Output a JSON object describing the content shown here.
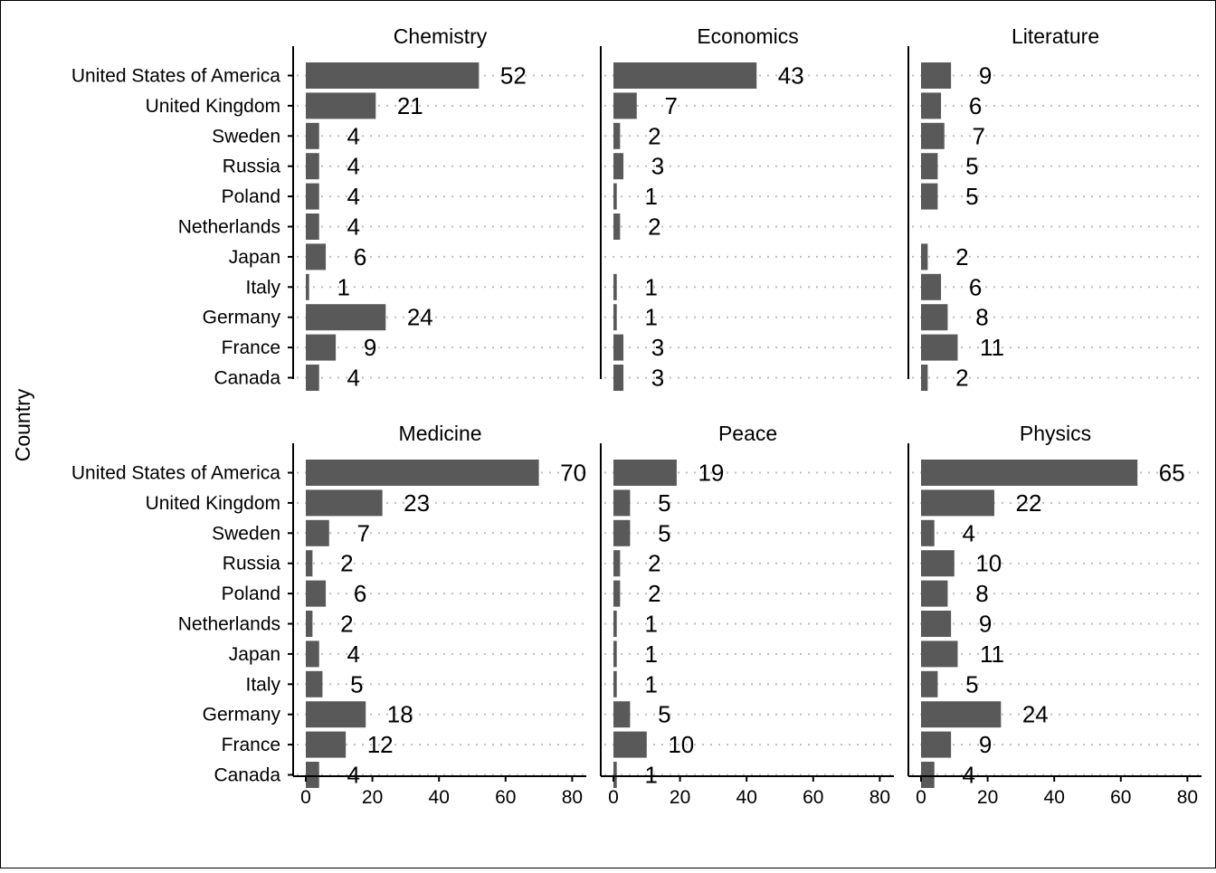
{
  "chart_data": {
    "type": "bar",
    "orientation": "horizontal",
    "facet_layout": "2 rows x 3 columns",
    "ylabel": "Country",
    "xlabel": "",
    "xlim": [
      0,
      84
    ],
    "x_ticks": [
      0,
      20,
      40,
      60,
      80
    ],
    "grid": "dotted horizontal guides",
    "bar_color": "#595959",
    "categories": [
      "United States of America",
      "United Kingdom",
      "Sweden",
      "Russia",
      "Poland",
      "Netherlands",
      "Japan",
      "Italy",
      "Germany",
      "France",
      "Canada"
    ],
    "facets": [
      {
        "title": "Chemistry",
        "values": [
          52,
          21,
          4,
          4,
          4,
          4,
          6,
          1,
          24,
          9,
          4
        ]
      },
      {
        "title": "Economics",
        "values": [
          43,
          7,
          2,
          3,
          1,
          2,
          null,
          1,
          1,
          3,
          3
        ]
      },
      {
        "title": "Literature",
        "values": [
          9,
          6,
          7,
          5,
          5,
          null,
          2,
          6,
          8,
          11,
          2
        ]
      },
      {
        "title": "Medicine",
        "values": [
          70,
          23,
          7,
          2,
          6,
          2,
          4,
          5,
          18,
          12,
          4
        ]
      },
      {
        "title": "Peace",
        "values": [
          19,
          5,
          5,
          2,
          2,
          1,
          1,
          1,
          5,
          10,
          1
        ]
      },
      {
        "title": "Physics",
        "values": [
          65,
          22,
          4,
          10,
          8,
          9,
          11,
          5,
          24,
          9,
          4
        ]
      }
    ]
  }
}
